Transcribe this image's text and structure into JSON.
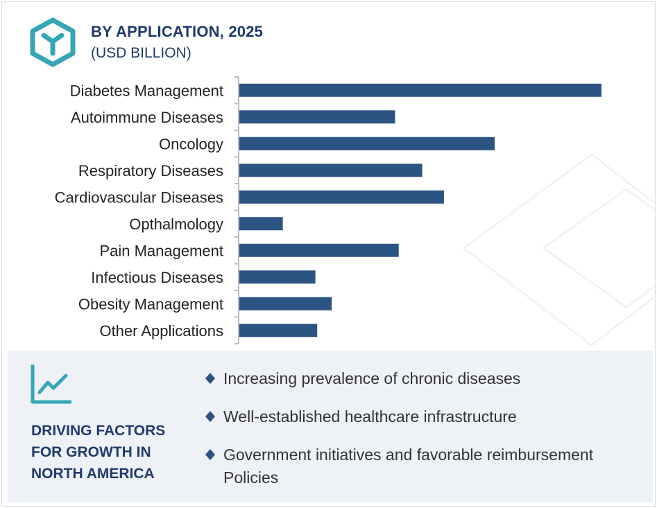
{
  "header": {
    "title": "BY APPLICATION, 2025",
    "subtitle": "(USD BILLION)",
    "logo_icon": "hexagon-y-logo-icon"
  },
  "colors": {
    "bar": "#2b5482",
    "accent": "#35a6b5",
    "title": "#1f3b6b",
    "panel_bg": "#eef1f6"
  },
  "chart_data": {
    "type": "bar",
    "orientation": "horizontal",
    "categories": [
      "Diabetes Management",
      "Autoimmune Diseases",
      "Oncology",
      "Respiratory Diseases",
      "Cardiovascular Diseases",
      "Opthalmology",
      "Pain Management",
      "Infectious Diseases",
      "Obesity Management",
      "Other Applications"
    ],
    "values": [
      100,
      43,
      70.5,
      50.5,
      56.5,
      12,
      44,
      21,
      25.5,
      21.5
    ],
    "xlim": [
      0,
      100
    ],
    "grid": false,
    "legend": "none"
  },
  "panel": {
    "icon": "line-chart-icon",
    "title_lines": [
      "DRIVING FACTORS",
      "FOR GROWTH IN",
      "NORTH AMERICA"
    ],
    "factors": [
      "Increasing prevalence of chronic diseases",
      "Well-established healthcare infrastructure",
      "Government initiatives and favorable reimbursement Policies"
    ]
  }
}
